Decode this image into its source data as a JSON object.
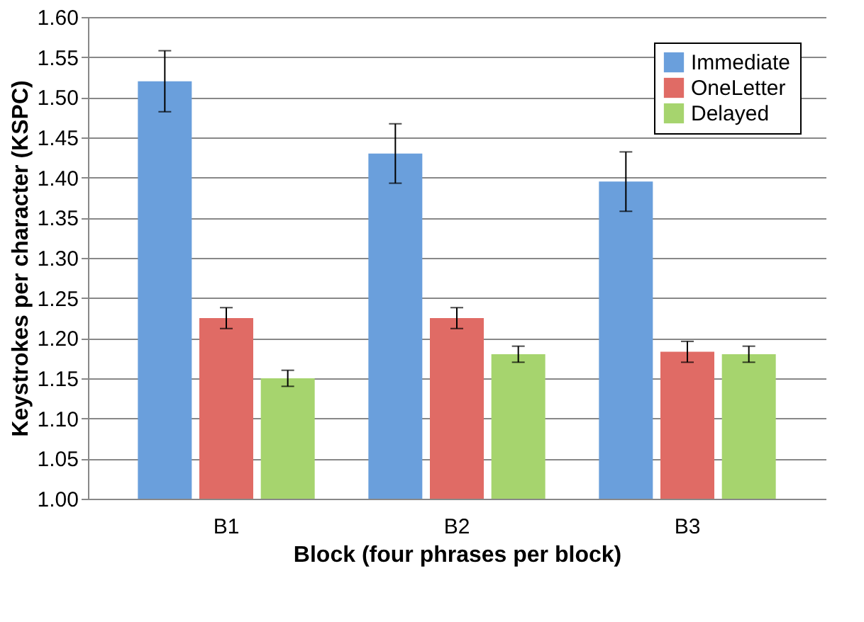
{
  "chart_data": {
    "type": "bar",
    "xlabel": "Block (four phrases per block)",
    "ylabel": "Keystrokes per character (KSPC)",
    "categories": [
      "B1",
      "B2",
      "B3"
    ],
    "series": [
      {
        "name": "Immediate",
        "color": "#6a9fdc",
        "values": [
          1.52,
          1.43,
          1.395
        ],
        "errors": [
          0.038,
          0.037,
          0.037
        ]
      },
      {
        "name": "OneLetter",
        "color": "#e06b65",
        "values": [
          1.225,
          1.225,
          1.183
        ],
        "errors": [
          0.013,
          0.013,
          0.013
        ]
      },
      {
        "name": "Delayed",
        "color": "#a6d46e",
        "values": [
          1.15,
          1.18,
          1.18
        ],
        "errors": [
          0.01,
          0.01,
          0.01
        ]
      }
    ],
    "ylim": [
      1.0,
      1.6
    ],
    "yticks": [
      {
        "value": 1.0,
        "label": "1.00"
      },
      {
        "value": 1.05,
        "label": "1.05"
      },
      {
        "value": 1.1,
        "label": "1.10"
      },
      {
        "value": 1.15,
        "label": "1.15"
      },
      {
        "value": 1.2,
        "label": "1.20"
      },
      {
        "value": 1.25,
        "label": "1.25"
      },
      {
        "value": 1.3,
        "label": "1.30"
      },
      {
        "value": 1.35,
        "label": "1.35"
      },
      {
        "value": 1.4,
        "label": "1.40"
      },
      {
        "value": 1.45,
        "label": "1.45"
      },
      {
        "value": 1.5,
        "label": "1.50"
      },
      {
        "value": 1.55,
        "label": "1.55"
      },
      {
        "value": 1.6,
        "label": "1.60"
      }
    ],
    "grid": "y",
    "legend": "top right"
  }
}
